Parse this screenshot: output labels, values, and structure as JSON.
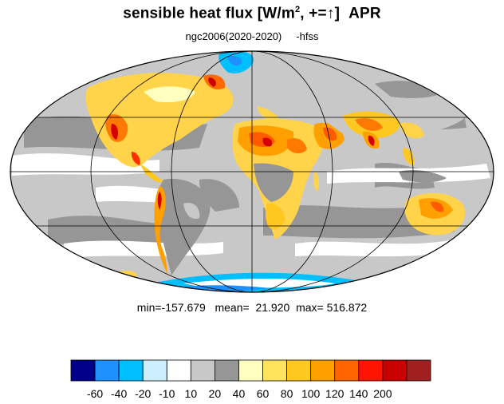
{
  "title": {
    "main": "sensible heat flux [W/m",
    "superscript": "2",
    "after_sup": ", +=",
    "arrow": "↑",
    "closing": "]",
    "month": "APR"
  },
  "subtitle": {
    "model": "ngc2006(2020-2020)",
    "variable": "-hfss"
  },
  "stats": {
    "min_label": "min=",
    "min": "-157.679",
    "mean_label": "mean=",
    "mean": "21.920",
    "max_label": "max=",
    "max": "516.872"
  },
  "map": {
    "projection": "mollweide",
    "ocean_fill": "#c8c8c8"
  },
  "colorbar": {
    "colors": [
      "#00008b",
      "#1e90ff",
      "#00bfff",
      "#cceeff",
      "#ffffff",
      "#c8c8c8",
      "#969696",
      "#ffffc0",
      "#ffe45c",
      "#ffc820",
      "#ffa000",
      "#ff6400",
      "#ff1400",
      "#c80000",
      "#a02020"
    ],
    "ticks": [
      "-60",
      "-40",
      "-20",
      "-10",
      "10",
      "20",
      "40",
      "60",
      "80",
      "100",
      "120",
      "140",
      "200"
    ]
  },
  "chart_data": {
    "type": "heatmap",
    "title": "sensible heat flux [W/m2, +=↑]  APR",
    "subtitle": "ngc2006(2020-2020)   -hfss",
    "levels": [
      -60,
      -40,
      -20,
      -10,
      10,
      20,
      40,
      60,
      80,
      100,
      120,
      140,
      200
    ],
    "min": -157.679,
    "mean": 21.92,
    "max": 516.872
  }
}
